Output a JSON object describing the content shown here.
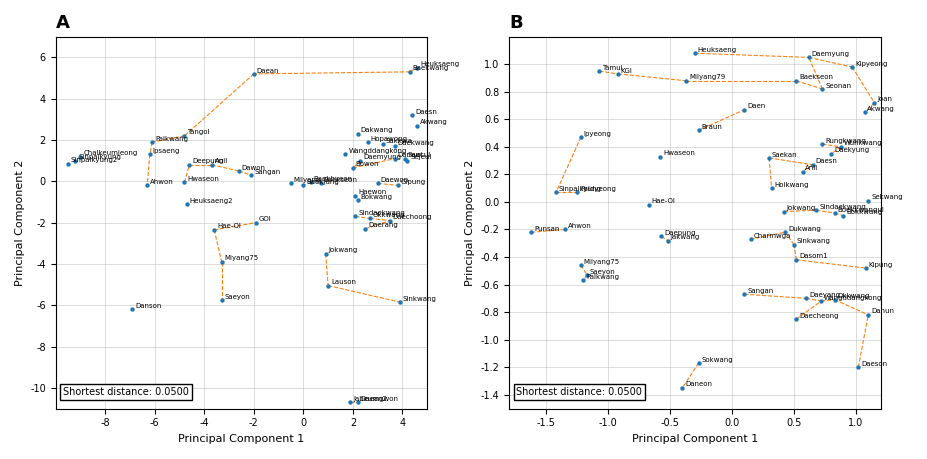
{
  "chart_data": [
    {
      "type": "scatter",
      "title": "A",
      "xlabel": "Principal Component 1",
      "ylabel": "Principal Component 2",
      "xlim": [
        -10,
        5
      ],
      "ylim": [
        -11,
        7
      ],
      "xticks": [
        -8,
        -6,
        -4,
        -2,
        0,
        2,
        4
      ],
      "yticks": [
        -10,
        -8,
        -6,
        -4,
        -2,
        0,
        2,
        4,
        6
      ],
      "grid": true,
      "annotation": "Shortest distance: 0.0500",
      "point_labels": [
        "Daean",
        "Baekwang",
        "Heuksaeng",
        "Daesn",
        "Akwang",
        "Dakwang",
        "Hopawong",
        "Sakkwa",
        "Daekwang",
        "Saecul",
        "Tangol",
        "Palkwang",
        "Ipsaeng",
        "Wangddangkong",
        "Daemyung",
        "Bowon",
        "Damuri",
        "Sejeul",
        "Daewon",
        "Gipung",
        "Deepung",
        "Anil",
        "Dawon",
        "Sangan",
        "Hwaseon",
        "Ahwon",
        "Milyang",
        "Baekhyeon",
        "Baekjung",
        "Baekseon",
        "Heuksaeng2",
        "Haewon",
        "Bokwang",
        "Sindaekwang",
        "Okkwang",
        "Daechoong",
        "Daerang",
        "Hae-Ol",
        "GOl",
        "Jokwang",
        "Miyang75",
        "Lauson",
        "Sinkwang",
        "Saeyon",
        "Danson",
        "Jabeumgwon",
        "Daean2",
        "Chalkeumjeong",
        "Sinpalkyung",
        "Sinpalkyung2"
      ],
      "x": [
        -2.0,
        4.3,
        4.6,
        4.4,
        4.6,
        2.2,
        2.6,
        3.2,
        3.7,
        4.1,
        -4.8,
        -6.1,
        -6.2,
        1.7,
        2.3,
        2.0,
        3.7,
        4.2,
        3.0,
        3.8,
        -4.6,
        -3.7,
        -2.6,
        -2.1,
        -4.8,
        -6.3,
        -0.5,
        0.3,
        0.0,
        0.7,
        -4.7,
        2.1,
        2.2,
        2.1,
        2.7,
        3.5,
        2.5,
        -3.6,
        -1.9,
        0.9,
        -3.3,
        1.0,
        3.9,
        -3.3,
        -6.9,
        1.9,
        2.2,
        -9.0,
        -9.2,
        -9.5
      ],
      "values": [
        5.2,
        5.3,
        5.5,
        3.2,
        2.7,
        2.3,
        1.9,
        1.8,
        1.7,
        1.1,
        2.2,
        1.9,
        1.3,
        1.3,
        1.0,
        0.65,
        1.1,
        1.0,
        -0.1,
        -0.2,
        0.8,
        0.8,
        0.5,
        0.3,
        -0.05,
        -0.2,
        -0.1,
        -0.05,
        -0.2,
        -0.1,
        -1.1,
        -0.7,
        -0.9,
        -1.7,
        -1.8,
        -1.9,
        -2.3,
        -2.35,
        -2.0,
        -3.5,
        -3.9,
        -5.05,
        -5.85,
        -5.75,
        -6.2,
        -10.7,
        -10.7,
        1.2,
        1.0,
        0.85
      ],
      "line_style": "dashed",
      "connections": [
        [
          [
            4.3,
            5.3
          ],
          [
            4.6,
            5.5
          ]
        ],
        [
          [
            4.3,
            5.3
          ],
          [
            -2.0,
            5.2
          ]
        ],
        [
          [
            -2.0,
            5.2
          ],
          [
            -4.8,
            2.2
          ]
        ],
        [
          [
            -4.8,
            2.2
          ],
          [
            -6.1,
            1.9
          ]
        ],
        [
          [
            -6.1,
            1.9
          ],
          [
            -6.2,
            1.3
          ]
        ],
        [
          [
            -6.2,
            1.3
          ],
          [
            -6.3,
            -0.2
          ]
        ],
        [
          [
            -4.6,
            0.8
          ],
          [
            -3.7,
            0.8
          ]
        ],
        [
          [
            -3.7,
            0.8
          ],
          [
            -2.6,
            0.5
          ]
        ],
        [
          [
            -2.6,
            0.5
          ],
          [
            -2.1,
            0.3
          ]
        ],
        [
          [
            -4.8,
            -0.05
          ],
          [
            -4.6,
            0.8
          ]
        ],
        [
          [
            -3.6,
            -2.35
          ],
          [
            -1.9,
            -2.0
          ]
        ],
        [
          [
            -3.6,
            -2.35
          ],
          [
            -3.3,
            -3.9
          ]
        ],
        [
          [
            -3.3,
            -3.9
          ],
          [
            -3.3,
            -5.75
          ]
        ],
        [
          [
            2.3,
            1.0
          ],
          [
            2.0,
            0.65
          ]
        ],
        [
          [
            2.0,
            0.65
          ],
          [
            3.7,
            1.1
          ]
        ],
        [
          [
            3.0,
            -0.1
          ],
          [
            3.8,
            -0.2
          ]
        ],
        [
          [
            0.9,
            -3.5
          ],
          [
            1.0,
            -5.05
          ]
        ],
        [
          [
            1.0,
            -5.05
          ],
          [
            3.9,
            -5.85
          ]
        ],
        [
          [
            2.1,
            -1.7
          ],
          [
            2.7,
            -1.8
          ]
        ],
        [
          [
            2.7,
            -1.8
          ],
          [
            3.5,
            -1.9
          ]
        ],
        [
          [
            2.5,
            -2.3
          ],
          [
            3.5,
            -1.9
          ]
        ],
        [
          [
            1.9,
            -10.7
          ],
          [
            2.2,
            -10.7
          ]
        ]
      ]
    },
    {
      "type": "scatter",
      "title": "B",
      "xlabel": "Principal Component 1",
      "ylabel": "Principal Component 2",
      "xlim": [
        -1.8,
        1.2
      ],
      "ylim": [
        -1.5,
        1.2
      ],
      "xticks": [
        -1.5,
        -1.0,
        -0.5,
        0.0,
        0.5,
        1.0
      ],
      "yticks": [
        -1.4,
        -1.2,
        -1.0,
        -0.8,
        -0.6,
        -0.4,
        -0.2,
        0.0,
        0.2,
        0.4,
        0.6,
        0.8,
        1.0
      ],
      "grid": true,
      "annotation": "Shortest distance: 0.0500",
      "point_labels": [
        "Heuksaeng",
        "Daemyung",
        "Kipyeong",
        "Tamui",
        "KGl",
        "Milyang79",
        "Baekseon",
        "Seonan",
        "Joan",
        "Akwang",
        "Daen",
        "Braun",
        "Ipyeong",
        "Rungkwang",
        "Wunkwang",
        "Daekyung",
        "Hwaseon",
        "Saekan",
        "Daesn",
        "Anil",
        "Hoikwang",
        "Sekwang",
        "Sinpalkyung",
        "Paldyeong",
        "Hae-Ol",
        "Jokwang",
        "Sindaekwang",
        "Boekkwangul",
        "Bokkwang",
        "Ahwon",
        "Punsan",
        "Daepung",
        "Jakwang",
        "Dukwang",
        "Charmwga",
        "Sinkwang",
        "Dasom1",
        "Kipung",
        "Milyang75",
        "Saeyon",
        "Palkwang",
        "Sangan",
        "Daeyang",
        "Wangddangkong",
        "Okkwang",
        "Daecheong",
        "Danun",
        "Daeson",
        "Sokwang",
        "Daneon"
      ],
      "x": [
        -0.3,
        0.62,
        0.97,
        -1.07,
        -0.92,
        -0.37,
        0.52,
        0.73,
        1.15,
        1.07,
        0.1,
        -0.27,
        -1.22,
        0.73,
        0.88,
        0.8,
        -0.58,
        0.3,
        0.65,
        0.57,
        0.32,
        1.1,
        -1.42,
        -1.25,
        -0.67,
        0.42,
        0.68,
        0.83,
        0.9,
        -1.35,
        -1.62,
        -0.57,
        -0.52,
        0.43,
        0.15,
        0.5,
        0.52,
        1.08,
        -1.22,
        -1.17,
        -1.2,
        0.1,
        0.6,
        0.72,
        0.83,
        0.52,
        1.1,
        1.02,
        -0.27,
        -0.4
      ],
      "values": [
        1.08,
        1.05,
        0.98,
        0.95,
        0.93,
        0.88,
        0.88,
        0.82,
        0.72,
        0.65,
        0.67,
        0.52,
        0.47,
        0.42,
        0.4,
        0.35,
        0.33,
        0.32,
        0.27,
        0.22,
        0.1,
        0.01,
        0.07,
        0.07,
        -0.02,
        -0.07,
        -0.06,
        -0.08,
        -0.1,
        -0.2,
        -0.22,
        -0.25,
        -0.28,
        -0.22,
        -0.27,
        -0.31,
        -0.42,
        -0.48,
        -0.46,
        -0.53,
        -0.57,
        -0.67,
        -0.7,
        -0.72,
        -0.71,
        -0.85,
        -0.82,
        -1.2,
        -1.17,
        -1.35
      ],
      "line_style": "dashed",
      "connections": [
        [
          [
            -0.3,
            1.08
          ],
          [
            0.62,
            1.05
          ]
        ],
        [
          [
            -1.07,
            0.95
          ],
          [
            -0.92,
            0.93
          ]
        ],
        [
          [
            -0.92,
            0.93
          ],
          [
            -0.37,
            0.88
          ]
        ],
        [
          [
            -0.37,
            0.88
          ],
          [
            0.52,
            0.88
          ]
        ],
        [
          [
            0.52,
            0.88
          ],
          [
            0.73,
            0.82
          ]
        ],
        [
          [
            0.73,
            0.82
          ],
          [
            0.62,
            1.05
          ]
        ],
        [
          [
            0.62,
            1.05
          ],
          [
            0.97,
            0.98
          ]
        ],
        [
          [
            0.97,
            0.98
          ],
          [
            1.15,
            0.72
          ]
        ],
        [
          [
            1.15,
            0.72
          ],
          [
            1.07,
            0.65
          ]
        ],
        [
          [
            -0.27,
            0.52
          ],
          [
            0.1,
            0.67
          ]
        ],
        [
          [
            -1.22,
            0.47
          ],
          [
            -1.42,
            0.07
          ]
        ],
        [
          [
            -1.42,
            0.07
          ],
          [
            -1.25,
            0.07
          ]
        ],
        [
          [
            -1.35,
            -0.2
          ],
          [
            -1.62,
            -0.22
          ]
        ],
        [
          [
            0.73,
            0.42
          ],
          [
            0.88,
            0.4
          ]
        ],
        [
          [
            0.88,
            0.4
          ],
          [
            0.8,
            0.35
          ]
        ],
        [
          [
            0.65,
            0.27
          ],
          [
            0.57,
            0.22
          ]
        ],
        [
          [
            0.3,
            0.32
          ],
          [
            0.65,
            0.27
          ]
        ],
        [
          [
            0.3,
            0.32
          ],
          [
            0.32,
            0.1
          ]
        ],
        [
          [
            0.42,
            -0.07
          ],
          [
            0.68,
            -0.06
          ]
        ],
        [
          [
            0.68,
            -0.06
          ],
          [
            0.83,
            -0.08
          ]
        ],
        [
          [
            0.83,
            -0.08
          ],
          [
            0.9,
            -0.1
          ]
        ],
        [
          [
            -0.57,
            -0.25
          ],
          [
            -0.52,
            -0.28
          ]
        ],
        [
          [
            0.15,
            -0.27
          ],
          [
            0.43,
            -0.22
          ]
        ],
        [
          [
            0.5,
            -0.31
          ],
          [
            0.43,
            -0.22
          ]
        ],
        [
          [
            0.52,
            -0.42
          ],
          [
            0.5,
            -0.31
          ]
        ],
        [
          [
            0.52,
            -0.42
          ],
          [
            1.08,
            -0.48
          ]
        ],
        [
          [
            0.1,
            -0.67
          ],
          [
            0.6,
            -0.7
          ]
        ],
        [
          [
            0.6,
            -0.7
          ],
          [
            0.72,
            -0.72
          ]
        ],
        [
          [
            0.72,
            -0.72
          ],
          [
            0.83,
            -0.71
          ]
        ],
        [
          [
            0.83,
            -0.71
          ],
          [
            1.1,
            -0.82
          ]
        ],
        [
          [
            0.52,
            -0.85
          ],
          [
            0.72,
            -0.72
          ]
        ],
        [
          [
            -0.27,
            -1.17
          ],
          [
            -0.4,
            -1.35
          ]
        ],
        [
          [
            1.02,
            -1.2
          ],
          [
            1.1,
            -0.82
          ]
        ],
        [
          [
            -1.22,
            -0.46
          ],
          [
            -1.17,
            -0.53
          ]
        ],
        [
          [
            -1.17,
            -0.53
          ],
          [
            -1.2,
            -0.57
          ]
        ]
      ]
    }
  ]
}
